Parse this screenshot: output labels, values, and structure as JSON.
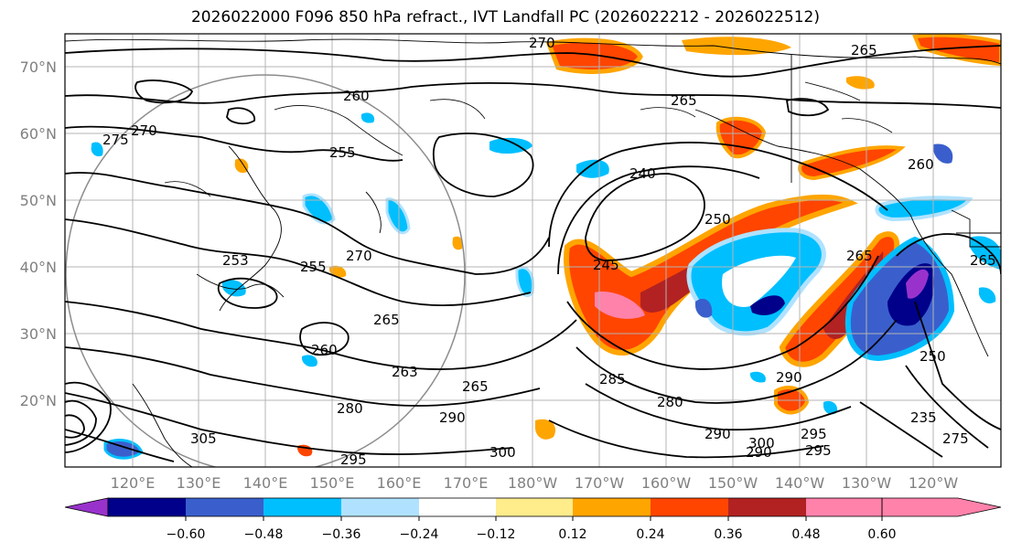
{
  "title": "2026022000 F096 850 hPa refract., IVT Landfall PC (2026022212 - 2026022512)",
  "lat_labels": [
    "70°N",
    "60°N",
    "50°N",
    "40°N",
    "30°N",
    "20°N"
  ],
  "lon_labels": [
    "120°E",
    "130°E",
    "140°E",
    "150°E",
    "160°E",
    "170°E",
    "180°W",
    "170°W",
    "160°W",
    "150°W",
    "140°W",
    "130°W",
    "120°W"
  ],
  "contour_labels": [
    "270",
    "265",
    "260",
    "265",
    "275",
    "270",
    "255",
    "240",
    "250",
    "245",
    "265",
    "260",
    "253",
    "255",
    "270",
    "265",
    "260",
    "263",
    "280",
    "265",
    "285",
    "280",
    "290",
    "290",
    "295",
    "300",
    "305",
    "295",
    "290",
    "290",
    "300",
    "295",
    "250",
    "235",
    "275",
    "265"
  ],
  "colorbar": {
    "colors": [
      "#9932cc",
      "#00008b",
      "#3a5fcd",
      "#00bfff",
      "#b0e2ff",
      "#ffffff",
      "#ffec8b",
      "#ffa500",
      "#ff4500",
      "#b22222",
      "#ff82ab"
    ],
    "tick_labels": [
      "−0.60",
      "−0.48",
      "−0.36",
      "−0.24",
      "−0.12",
      "0.12",
      "0.24",
      "0.36",
      "0.48",
      "0.60"
    ]
  }
}
